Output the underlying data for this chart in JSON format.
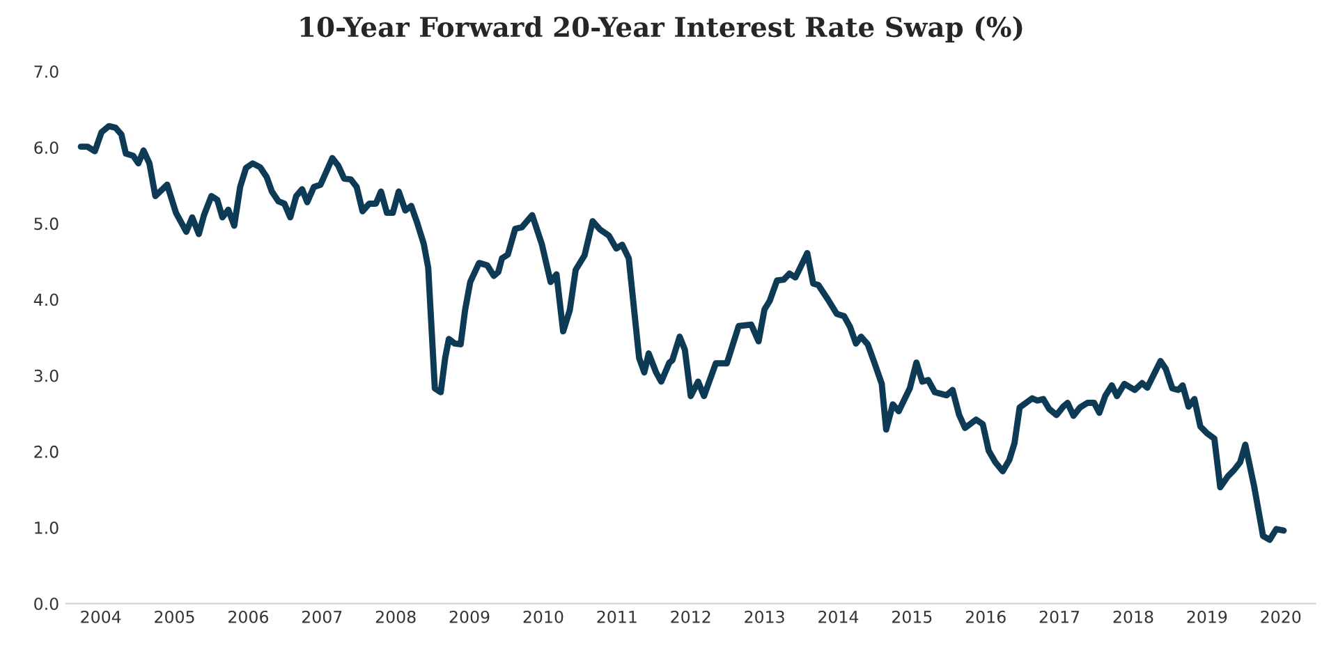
{
  "chart_data": {
    "type": "line",
    "title": "10-Year Forward 20-Year Interest Rate Swap (%)",
    "x": [
      2003.73,
      2003.82,
      2003.92,
      2004.01,
      2004.11,
      2004.2,
      2004.28,
      2004.34,
      2004.44,
      2004.51,
      2004.58,
      2004.66,
      2004.74,
      2004.9,
      2005.02,
      2005.16,
      2005.24,
      2005.33,
      2005.4,
      2005.5,
      2005.58,
      2005.65,
      2005.73,
      2005.81,
      2005.89,
      2005.97,
      2006.06,
      2006.16,
      2006.25,
      2006.32,
      2006.41,
      2006.49,
      2006.57,
      2006.65,
      2006.73,
      2006.8,
      2006.89,
      2006.98,
      2007.04,
      2007.14,
      2007.22,
      2007.3,
      2007.39,
      2007.47,
      2007.55,
      2007.64,
      2007.73,
      2007.8,
      2007.88,
      2007.96,
      2008.04,
      2008.13,
      2008.21,
      2008.29,
      2008.38,
      2008.44,
      2008.49,
      2008.53,
      2008.61,
      2008.67,
      2008.72,
      2008.8,
      2008.88,
      2008.94,
      2009.01,
      2009.13,
      2009.24,
      2009.33,
      2009.39,
      2009.44,
      2009.52,
      2009.62,
      2009.71,
      2009.85,
      2009.98,
      2010.1,
      2010.18,
      2010.27,
      2010.36,
      2010.44,
      2010.56,
      2010.67,
      2010.77,
      2010.89,
      2010.99,
      2011.07,
      2011.16,
      2011.27,
      2011.3,
      2011.37,
      2011.43,
      2011.53,
      2011.6,
      2011.71,
      2011.75,
      2011.85,
      2011.92,
      2012.0,
      2012.1,
      2012.18,
      2012.34,
      2012.49,
      2012.65,
      2012.82,
      2012.92,
      2013.0,
      2013.07,
      2013.17,
      2013.26,
      2013.34,
      2013.42,
      2013.58,
      2013.66,
      2013.73,
      2013.86,
      2013.98,
      2014.08,
      2014.16,
      2014.24,
      2014.31,
      2014.4,
      2014.49,
      2014.59,
      2014.65,
      2014.74,
      2014.82,
      2014.97,
      2015.06,
      2015.14,
      2015.22,
      2015.31,
      2015.47,
      2015.55,
      2015.64,
      2015.72,
      2015.87,
      2015.96,
      2016.04,
      2016.13,
      2016.23,
      2016.32,
      2016.39,
      2016.46,
      2016.63,
      2016.7,
      2016.78,
      2016.86,
      2016.96,
      2017.05,
      2017.11,
      2017.19,
      2017.28,
      2017.38,
      2017.47,
      2017.54,
      2017.62,
      2017.71,
      2017.78,
      2017.88,
      2018.02,
      2018.12,
      2018.19,
      2018.37,
      2018.44,
      2018.53,
      2018.61,
      2018.67,
      2018.75,
      2018.83,
      2018.91,
      2019.0,
      2019.1,
      2019.18,
      2019.28,
      2019.37,
      2019.45,
      2019.52,
      2019.64,
      2019.76,
      2019.85,
      2019.94,
      2020.04
    ],
    "series": [
      {
        "color": "#0d3a55",
        "values": [
          6.01,
          6.01,
          5.95,
          6.2,
          6.28,
          6.26,
          6.17,
          5.92,
          5.89,
          5.79,
          5.96,
          5.79,
          5.36,
          5.51,
          5.14,
          4.89,
          5.08,
          4.86,
          5.11,
          5.36,
          5.31,
          5.08,
          5.18,
          4.97,
          5.48,
          5.73,
          5.79,
          5.74,
          5.61,
          5.42,
          5.29,
          5.26,
          5.08,
          5.36,
          5.45,
          5.28,
          5.48,
          5.51,
          5.64,
          5.86,
          5.76,
          5.59,
          5.58,
          5.48,
          5.16,
          5.26,
          5.26,
          5.42,
          5.14,
          5.14,
          5.42,
          5.17,
          5.23,
          5.01,
          4.73,
          4.42,
          3.54,
          2.83,
          2.78,
          3.23,
          3.48,
          3.42,
          3.41,
          3.86,
          4.23,
          4.48,
          4.45,
          4.31,
          4.36,
          4.54,
          4.59,
          4.93,
          4.95,
          5.11,
          4.73,
          4.23,
          4.33,
          3.58,
          3.86,
          4.39,
          4.58,
          5.03,
          4.92,
          4.84,
          4.67,
          4.72,
          4.54,
          3.51,
          3.23,
          3.04,
          3.29,
          3.04,
          2.92,
          3.17,
          3.2,
          3.51,
          3.34,
          2.73,
          2.92,
          2.73,
          3.16,
          3.16,
          3.65,
          3.67,
          3.45,
          3.87,
          3.98,
          4.25,
          4.26,
          4.34,
          4.29,
          4.61,
          4.21,
          4.19,
          4.0,
          3.81,
          3.78,
          3.64,
          3.42,
          3.51,
          3.41,
          3.17,
          2.89,
          2.29,
          2.62,
          2.53,
          2.83,
          3.17,
          2.92,
          2.94,
          2.78,
          2.74,
          2.81,
          2.48,
          2.31,
          2.42,
          2.36,
          2.01,
          1.86,
          1.74,
          1.89,
          2.11,
          2.58,
          2.7,
          2.67,
          2.69,
          2.56,
          2.48,
          2.59,
          2.64,
          2.47,
          2.58,
          2.64,
          2.64,
          2.51,
          2.73,
          2.87,
          2.73,
          2.89,
          2.81,
          2.9,
          2.84,
          3.19,
          3.09,
          2.83,
          2.81,
          2.87,
          2.59,
          2.69,
          2.33,
          2.24,
          2.17,
          1.53,
          1.67,
          1.76,
          1.86,
          2.09,
          1.54,
          0.89,
          0.84,
          0.98,
          0.96
        ]
      }
    ],
    "xlim": [
      2003.53,
      2020.47
    ],
    "xticks": [
      2004,
      2005,
      2006,
      2007,
      2008,
      2009,
      2010,
      2011,
      2012,
      2013,
      2014,
      2015,
      2016,
      2017,
      2018,
      2019,
      2020
    ],
    "ylim": [
      0,
      7
    ],
    "yticks": [
      {
        "value": 0,
        "label": "0.0"
      },
      {
        "value": 1,
        "label": "1.0"
      },
      {
        "value": 2,
        "label": "2.0"
      },
      {
        "value": 3,
        "label": "3.0"
      },
      {
        "value": 4,
        "label": "4.0"
      },
      {
        "value": 5,
        "label": "5.0"
      },
      {
        "value": 6,
        "label": "6.0"
      },
      {
        "value": 7,
        "label": "7.0"
      }
    ],
    "grid": false,
    "marker": "none",
    "line_style": "solid"
  }
}
